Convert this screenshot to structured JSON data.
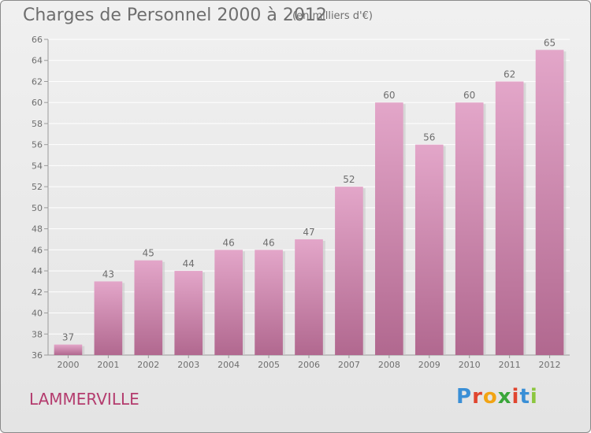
{
  "header": {
    "title": "Charges de Personnel 2000 à 2012",
    "subtitle": "(en milliers d'€)"
  },
  "footer": {
    "commune": "LAMMERVILLE",
    "brand": "Proxiti",
    "brand_colors": [
      "#3a8fd6",
      "#e0452f",
      "#f2a414",
      "#3aa63a",
      "#e0452f",
      "#3a8fd6",
      "#8cc63f"
    ]
  },
  "colors": {
    "bar_top": "#e3a6c9",
    "bar_bottom": "#b1688f",
    "text": "#6e6e6e",
    "grid": "#ffffff",
    "commune_text": "#b43c6e"
  },
  "chart_data": {
    "type": "bar",
    "categories": [
      "2000",
      "2001",
      "2002",
      "2003",
      "2004",
      "2005",
      "2006",
      "2007",
      "2008",
      "2009",
      "2010",
      "2011",
      "2012"
    ],
    "values": [
      37,
      43,
      45,
      44,
      46,
      46,
      47,
      52,
      60,
      56,
      60,
      62,
      65
    ],
    "data_labels": [
      "37",
      "43",
      "45",
      "44",
      "46",
      "46",
      "47",
      "52",
      "60",
      "56",
      "60",
      "62",
      "65"
    ],
    "y_ticks": [
      "36",
      "38",
      "40",
      "42",
      "44",
      "46",
      "48",
      "50",
      "52",
      "54",
      "56",
      "58",
      "60",
      "62",
      "64",
      "66"
    ],
    "ylim": [
      36,
      66
    ],
    "grid": true,
    "title": "Charges de Personnel 2000 à 2012",
    "subtitle": "(en milliers d'€)"
  }
}
